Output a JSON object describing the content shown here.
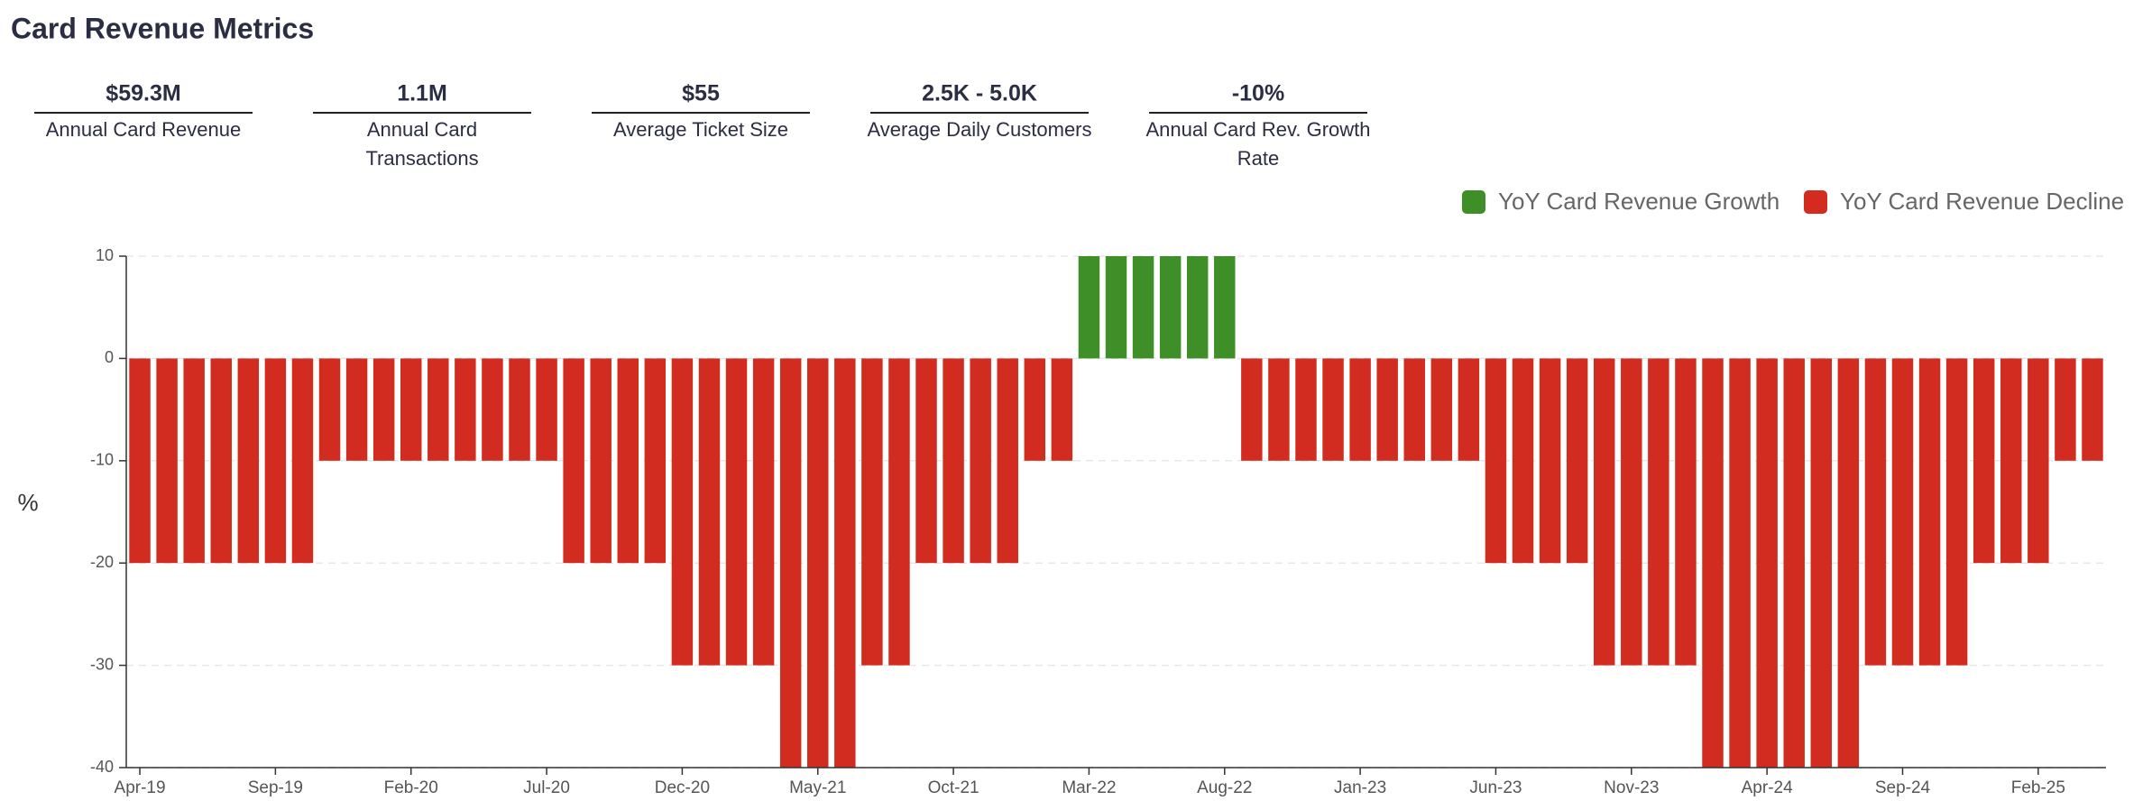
{
  "title": "Card Revenue Metrics",
  "kpis": [
    {
      "value": "$59.3M",
      "label": "Annual Card Revenue"
    },
    {
      "value": "1.1M",
      "label": "Annual Card Transactions"
    },
    {
      "value": "$55",
      "label": "Average Ticket Size"
    },
    {
      "value": "2.5K - 5.0K",
      "label": "Average Daily Customers"
    },
    {
      "value": "-10%",
      "label": "Annual Card Rev. Growth Rate"
    }
  ],
  "chart_data": {
    "type": "bar",
    "y_label": "%",
    "categories": [
      "Apr-19",
      null,
      null,
      null,
      null,
      "Sep-19",
      null,
      null,
      null,
      null,
      "Feb-20",
      null,
      null,
      null,
      null,
      "Jul-20",
      null,
      null,
      null,
      null,
      "Dec-20",
      null,
      null,
      null,
      null,
      "May-21",
      null,
      null,
      null,
      null,
      "Oct-21",
      null,
      null,
      null,
      null,
      "Mar-22",
      null,
      null,
      null,
      null,
      "Aug-22",
      null,
      null,
      null,
      null,
      "Jan-23",
      null,
      null,
      null,
      null,
      "Jun-23",
      null,
      null,
      null,
      null,
      "Nov-23",
      null,
      null,
      null,
      null,
      "Apr-24",
      null,
      null,
      null,
      null,
      "Sep-24",
      null,
      null,
      null,
      null,
      "Feb-25",
      null,
      null
    ],
    "series": [
      {
        "name": "YoY Card Revenue Growth",
        "color": "#3f8f29",
        "values": [
          null,
          null,
          null,
          null,
          null,
          null,
          null,
          null,
          null,
          null,
          null,
          null,
          null,
          null,
          null,
          null,
          null,
          null,
          null,
          null,
          null,
          null,
          null,
          null,
          null,
          null,
          null,
          null,
          null,
          null,
          null,
          null,
          null,
          null,
          null,
          10,
          10,
          10,
          10,
          10,
          10,
          null,
          null,
          null,
          null,
          null,
          null,
          null,
          null,
          null,
          null,
          null,
          null,
          null,
          null,
          null,
          null,
          null,
          null,
          null,
          null,
          null,
          null,
          null,
          null,
          null,
          null,
          null,
          null,
          null,
          null,
          null,
          null
        ]
      },
      {
        "name": "YoY Card Revenue Decline",
        "color": "#d22b1f",
        "values": [
          -20,
          -20,
          -20,
          -20,
          -20,
          -20,
          -20,
          -10,
          -10,
          -10,
          -10,
          -10,
          -10,
          -10,
          -10,
          -10,
          -20,
          -20,
          -20,
          -20,
          -30,
          -30,
          -30,
          -30,
          -40,
          -40,
          -40,
          -30,
          -30,
          -20,
          -20,
          -20,
          -20,
          -10,
          -10,
          null,
          null,
          null,
          null,
          null,
          null,
          -10,
          -10,
          -10,
          -10,
          -10,
          -10,
          -10,
          -10,
          -10,
          -20,
          -20,
          -20,
          -20,
          -30,
          -30,
          -30,
          -30,
          -40,
          -40,
          -40,
          -40,
          -40,
          -40,
          -30,
          -30,
          -30,
          -30,
          -20,
          -20,
          -20,
          -10,
          -10
        ]
      }
    ],
    "ylim": [
      -40,
      10
    ],
    "yticks": [
      -40,
      -30,
      -20,
      -10,
      0,
      10
    ],
    "grid": true
  }
}
